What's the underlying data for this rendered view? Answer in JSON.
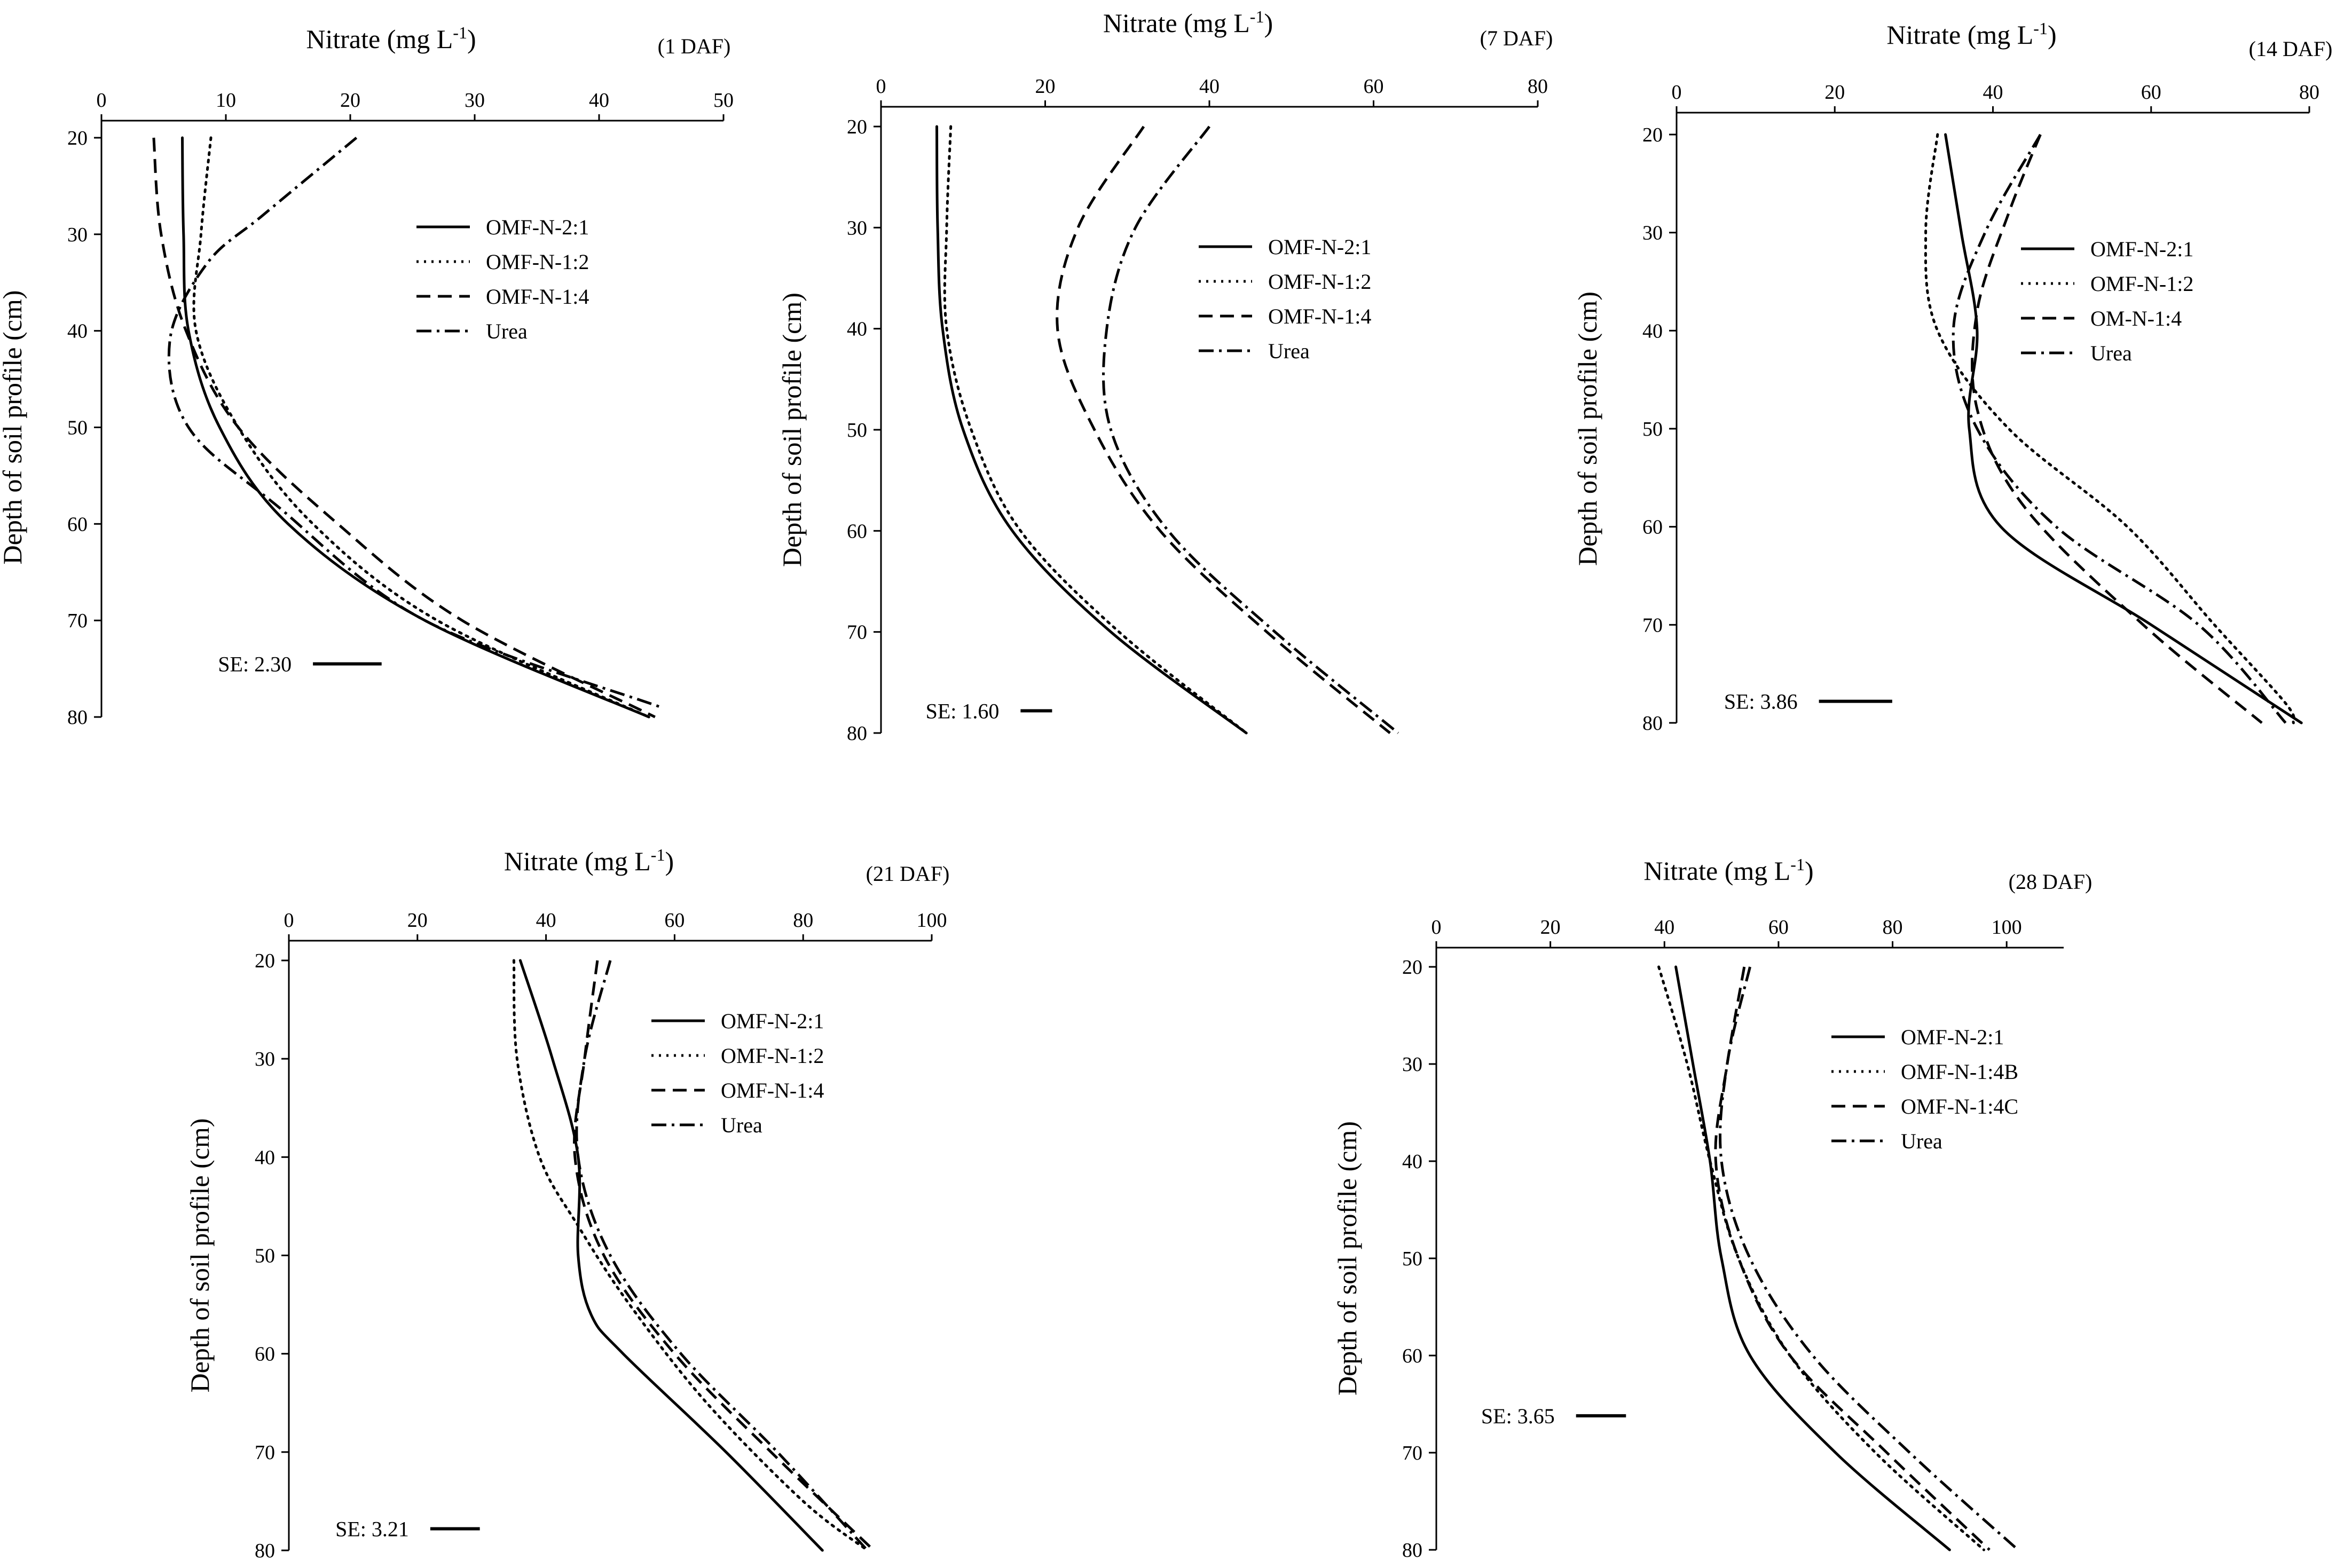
{
  "chart_data": [
    {
      "type": "line",
      "title": "Nitrate (mg L-1)",
      "xlabel_base": "Nitrate (mg L",
      "xlabel_sup": "-1",
      "xlabel_close": ")",
      "ylabel": "Depth of soil profile (cm)",
      "tag": "(1 DAF)",
      "xlim": [
        0,
        50
      ],
      "xticks": [
        0,
        10,
        20,
        30,
        40,
        50
      ],
      "ylim": [
        20,
        80
      ],
      "yticks": [
        20,
        30,
        40,
        50,
        60,
        70,
        80
      ],
      "se_label": "SE: 2.30",
      "se_value": 2.3,
      "se_depth": 74.5,
      "se_x": 17.0,
      "series": [
        {
          "name": "OMF-N-2:1",
          "style": "solid",
          "points": [
            [
              6.5,
              20
            ],
            [
              6.6,
              30
            ],
            [
              7.0,
              40
            ],
            [
              9.5,
              50
            ],
            [
              15,
              60
            ],
            [
              26,
              70
            ],
            [
              44,
              80
            ]
          ]
        },
        {
          "name": "OMF-N-1:2",
          "style": "dot",
          "points": [
            [
              8.8,
              20
            ],
            [
              8.0,
              30
            ],
            [
              7.6,
              40
            ],
            [
              11,
              50
            ],
            [
              17,
              60
            ],
            [
              27,
              70
            ],
            [
              44,
              80
            ]
          ]
        },
        {
          "name": "OMF-N-1:4",
          "style": "dash",
          "points": [
            [
              4.2,
              20
            ],
            [
              4.8,
              30
            ],
            [
              6.8,
              40
            ],
            [
              11,
              50
            ],
            [
              19,
              60
            ],
            [
              29,
              70
            ],
            [
              44.5,
              80
            ]
          ]
        },
        {
          "name": "Urea",
          "style": "dashdot",
          "points": [
            [
              20.5,
              20
            ],
            [
              13,
              28
            ],
            [
              8.5,
              33
            ],
            [
              5.5,
              41
            ],
            [
              7.0,
              50
            ],
            [
              14,
              58
            ],
            [
              26,
              70
            ],
            [
              45,
              79
            ]
          ]
        }
      ]
    },
    {
      "type": "line",
      "title": "Nitrate (mg L-1)",
      "xlabel_base": "Nitrate (mg L",
      "xlabel_sup": "-1",
      "xlabel_close": ")",
      "ylabel": "Depth of soil profile (cm)",
      "tag": "(7 DAF)",
      "xlim": [
        0,
        80
      ],
      "xticks": [
        0,
        20,
        40,
        60,
        80
      ],
      "ylim": [
        20,
        80
      ],
      "yticks": [
        20,
        30,
        40,
        50,
        60,
        70,
        80
      ],
      "se_label": "SE: 1.60",
      "se_value": 1.6,
      "se_depth": 77.8,
      "se_x": 17.0,
      "series": [
        {
          "name": "OMF-N-2:1",
          "style": "solid",
          "points": [
            [
              6.8,
              20
            ],
            [
              6.9,
              30
            ],
            [
              7.5,
              40
            ],
            [
              10,
              50
            ],
            [
              16,
              60
            ],
            [
              28,
              70
            ],
            [
              44.5,
              80
            ]
          ]
        },
        {
          "name": "OMF-N-1:2",
          "style": "dot",
          "points": [
            [
              8.5,
              20
            ],
            [
              8.0,
              30
            ],
            [
              8.0,
              40
            ],
            [
              11,
              50
            ],
            [
              17,
              60
            ],
            [
              29,
              70
            ],
            [
              44.5,
              80
            ]
          ]
        },
        {
          "name": "OMF-N-1:4",
          "style": "dash",
          "points": [
            [
              32,
              20
            ],
            [
              24,
              30
            ],
            [
              21.5,
              40
            ],
            [
              26,
              50
            ],
            [
              34,
              60
            ],
            [
              47,
              70
            ],
            [
              62,
              80
            ]
          ]
        },
        {
          "name": "Urea",
          "style": "dashdot",
          "points": [
            [
              40,
              20
            ],
            [
              31,
              30
            ],
            [
              27.5,
              40
            ],
            [
              28,
              50
            ],
            [
              35,
              60
            ],
            [
              48,
              70
            ],
            [
              63,
              80
            ]
          ]
        }
      ]
    },
    {
      "type": "line",
      "title": "Nitrate (mg L-1)",
      "xlabel_base": "Nitrate (mg L",
      "xlabel_sup": "-1",
      "xlabel_close": ")",
      "ylabel": "Depth of soil profile (cm)",
      "tag": "(14 DAF)",
      "xlim": [
        0,
        80
      ],
      "xticks": [
        0,
        20,
        40,
        60,
        80
      ],
      "ylim": [
        20,
        80
      ],
      "yticks": [
        20,
        30,
        40,
        50,
        60,
        70,
        80
      ],
      "se_label": "SE: 3.86",
      "se_value": 3.86,
      "se_depth": 77.8,
      "se_x": 18.0,
      "series": [
        {
          "name": "OMF-N-2:1",
          "style": "solid",
          "points": [
            [
              34,
              20
            ],
            [
              36,
              30
            ],
            [
              38,
              40
            ],
            [
              37,
              50
            ],
            [
              41,
              60
            ],
            [
              60,
              70
            ],
            [
              79,
              80
            ]
          ]
        },
        {
          "name": "OMF-N-1:2",
          "style": "dot",
          "points": [
            [
              33,
              20
            ],
            [
              31.5,
              30
            ],
            [
              33,
              40
            ],
            [
              42,
              50
            ],
            [
              57,
              60
            ],
            [
              68,
              70
            ],
            [
              77,
              78
            ],
            [
              78,
              80
            ]
          ]
        },
        {
          "name": "OM-N-1:4",
          "style": "dash",
          "points": [
            [
              46,
              20
            ],
            [
              42,
              28
            ],
            [
              38,
              38
            ],
            [
              38,
              48
            ],
            [
              44,
              58
            ],
            [
              59,
              70
            ],
            [
              74,
              80
            ]
          ]
        },
        {
          "name": "Urea",
          "style": "dashdot",
          "points": [
            [
              46,
              20
            ],
            [
              39,
              30
            ],
            [
              35,
              40
            ],
            [
              38,
              50
            ],
            [
              48,
              60
            ],
            [
              66,
              70
            ],
            [
              77,
              80
            ]
          ]
        }
      ]
    },
    {
      "type": "line",
      "title": "Nitrate (mg L-1)",
      "xlabel_base": "Nitrate (mg L",
      "xlabel_sup": "-1",
      "xlabel_close": ")",
      "ylabel": "Depth of soil profile (cm)",
      "tag": "(21 DAF)",
      "xlim": [
        0,
        100
      ],
      "xticks": [
        0,
        20,
        40,
        60,
        80,
        100
      ],
      "ylim": [
        20,
        80
      ],
      "yticks": [
        20,
        30,
        40,
        50,
        60,
        70,
        80
      ],
      "se_label": "SE: 3.21",
      "se_value": 3.21,
      "se_depth": 77.8,
      "se_x": 22.0,
      "series": [
        {
          "name": "OMF-N-2:1",
          "style": "solid",
          "points": [
            [
              36,
              20
            ],
            [
              41,
              30
            ],
            [
              45,
              40
            ],
            [
              45,
              50
            ],
            [
              47,
              56
            ],
            [
              52,
              60
            ],
            [
              68,
              70
            ],
            [
              83,
              80
            ]
          ]
        },
        {
          "name": "OMF-N-1:2",
          "style": "dot",
          "points": [
            [
              35,
              20
            ],
            [
              35.5,
              30
            ],
            [
              39,
              40
            ],
            [
              45,
              47
            ],
            [
              53,
              55
            ],
            [
              65,
              65
            ],
            [
              80,
              75
            ],
            [
              90,
              80
            ]
          ]
        },
        {
          "name": "OMF-N-1:4",
          "style": "dash",
          "points": [
            [
              48,
              20
            ],
            [
              46,
              30
            ],
            [
              44.5,
              40
            ],
            [
              49,
              50
            ],
            [
              60,
              60
            ],
            [
              75,
              70
            ],
            [
              91,
              80
            ]
          ]
        },
        {
          "name": "Urea",
          "style": "dashdot",
          "points": [
            [
              50,
              20
            ],
            [
              46,
              30
            ],
            [
              45,
              40
            ],
            [
              50,
              50
            ],
            [
              61,
              60
            ],
            [
              76,
              70
            ],
            [
              90,
              80
            ]
          ]
        }
      ]
    },
    {
      "type": "line",
      "title": "Nitrate (mg L-1)",
      "xlabel_base": "Nitrate (mg L",
      "xlabel_sup": "-1",
      "xlabel_close": ")",
      "ylabel": "Depth of soil profile (cm)",
      "tag": "(28 DAF)",
      "xlim": [
        0,
        110
      ],
      "xticks": [
        0,
        20,
        40,
        60,
        80,
        100
      ],
      "ylim": [
        20,
        80
      ],
      "yticks": [
        20,
        30,
        40,
        50,
        60,
        70,
        80
      ],
      "se_label": "SE: 3.65",
      "se_value": 3.65,
      "se_depth": 66.2,
      "se_x": 24.5,
      "series": [
        {
          "name": "OMF-N-2:1",
          "style": "solid",
          "points": [
            [
              42,
              20
            ],
            [
              45,
              30
            ],
            [
              48,
              40
            ],
            [
              50,
              50
            ],
            [
              55,
              60
            ],
            [
              70,
              70
            ],
            [
              90,
              80
            ]
          ]
        },
        {
          "name": "OMF-N-1:4B",
          "style": "dot",
          "points": [
            [
              39,
              20
            ],
            [
              44,
              30
            ],
            [
              48,
              40
            ],
            [
              53,
              50
            ],
            [
              62,
              60
            ],
            [
              77,
              70
            ],
            [
              96,
              80
            ]
          ]
        },
        {
          "name": "OMF-N-1:4C",
          "style": "dash",
          "points": [
            [
              54,
              20
            ],
            [
              51,
              30
            ],
            [
              49,
              40
            ],
            [
              53,
              50
            ],
            [
              62,
              60
            ],
            [
              79,
              70
            ],
            [
              97,
              80
            ]
          ]
        },
        {
          "name": "Urea",
          "style": "dashdot",
          "points": [
            [
              55,
              20
            ],
            [
              51,
              30
            ],
            [
              50,
              40
            ],
            [
              55,
              50
            ],
            [
              66,
              60
            ],
            [
              83,
              70
            ],
            [
              102,
              80
            ]
          ]
        }
      ]
    }
  ]
}
